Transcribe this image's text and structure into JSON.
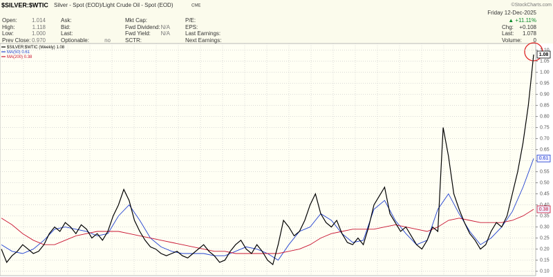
{
  "header": {
    "symbol": "$SILVER:$WTIC",
    "description": "Silver - Spot (EOD)/Light Crude Oil - Spot (EOD)",
    "exchange": "CME",
    "watermark": "©StockCharts.com"
  },
  "quote": {
    "columns": [
      [
        {
          "label": "Open:",
          "value": "1.014"
        },
        {
          "label": "High:",
          "value": "1.118"
        },
        {
          "label": "Low:",
          "value": "1.000"
        },
        {
          "label": "Prev Close:",
          "value": "0.970"
        }
      ],
      [
        {
          "label": "Ask:"
        },
        {
          "label": "Bid:"
        },
        {
          "label": "Last:"
        },
        {
          "label": "Optionable:",
          "value": "no"
        }
      ],
      [
        {
          "label": "Mkt Cap:"
        },
        {
          "label": "Fwd Dividend:",
          "value": "N/A"
        },
        {
          "label": "Fwd Yield:",
          "value": "N/A"
        },
        {
          "label": "SCTR:"
        }
      ],
      [
        {
          "label": "P/E:"
        },
        {
          "label": "EPS:"
        },
        {
          "label": "Last Earnings:"
        },
        {
          "label": "Next Earnings:"
        }
      ]
    ],
    "date": "Friday 12-Dec-2025",
    "change_pct": "▲ +11.11%",
    "right": [
      {
        "label": "Chg:",
        "value": "+0.108"
      },
      {
        "label": "Last:",
        "value": "1.078"
      },
      {
        "label": "Volume:",
        "value": "0"
      }
    ]
  },
  "chart_data": {
    "type": "line",
    "ylim": [
      0.08,
      1.13
    ],
    "yticks": [
      {
        "value": 0.1,
        "label": "0.10"
      },
      {
        "value": 0.15,
        "label": "0.15"
      },
      {
        "value": 0.2,
        "label": "0.20"
      },
      {
        "value": 0.25,
        "label": "0.25"
      },
      {
        "value": 0.3,
        "label": "0.30"
      },
      {
        "value": 0.35,
        "label": "0.35"
      },
      {
        "value": 0.4,
        "label": "0.40"
      },
      {
        "value": 0.45,
        "label": "0.45"
      },
      {
        "value": 0.5,
        "label": "0.50"
      },
      {
        "value": 0.55,
        "label": "0.55"
      },
      {
        "value": 0.6,
        "label": "0.60"
      },
      {
        "value": 0.65,
        "label": "0.65"
      },
      {
        "value": 0.7,
        "label": "0.70"
      },
      {
        "value": 0.75,
        "label": "0.75"
      },
      {
        "value": 0.8,
        "label": "0.80"
      },
      {
        "value": 0.85,
        "label": "0.85"
      },
      {
        "value": 0.9,
        "label": "0.90"
      },
      {
        "value": 0.95,
        "label": "0.95"
      },
      {
        "value": 1.0,
        "label": "1.00"
      },
      {
        "value": 1.05,
        "label": "1.05"
      },
      {
        "value": 1.1,
        "label": "1.10"
      }
    ],
    "grid": true,
    "series": [
      {
        "name": "$SILVER:$WTIC (Weekly)",
        "color": "#000000",
        "last": 1.08,
        "values": [
          0.2,
          0.14,
          0.17,
          0.19,
          0.22,
          0.2,
          0.18,
          0.19,
          0.22,
          0.27,
          0.3,
          0.28,
          0.32,
          0.3,
          0.27,
          0.31,
          0.29,
          0.25,
          0.27,
          0.24,
          0.28,
          0.35,
          0.4,
          0.47,
          0.42,
          0.33,
          0.28,
          0.24,
          0.21,
          0.2,
          0.18,
          0.17,
          0.18,
          0.19,
          0.17,
          0.16,
          0.18,
          0.2,
          0.22,
          0.19,
          0.17,
          0.14,
          0.15,
          0.19,
          0.22,
          0.24,
          0.2,
          0.18,
          0.22,
          0.19,
          0.15,
          0.13,
          0.22,
          0.33,
          0.3,
          0.26,
          0.28,
          0.33,
          0.4,
          0.45,
          0.36,
          0.32,
          0.3,
          0.33,
          0.27,
          0.23,
          0.22,
          0.25,
          0.22,
          0.3,
          0.4,
          0.44,
          0.48,
          0.36,
          0.32,
          0.28,
          0.3,
          0.26,
          0.22,
          0.2,
          0.24,
          0.3,
          0.28,
          0.75,
          0.62,
          0.45,
          0.38,
          0.32,
          0.27,
          0.24,
          0.2,
          0.22,
          0.28,
          0.32,
          0.3,
          0.35,
          0.45,
          0.55,
          0.68,
          0.85,
          1.08
        ]
      },
      {
        "name": "MA(50)",
        "color": "#1f3fd0",
        "last": 0.61,
        "values": [
          0.22,
          0.19,
          0.18,
          0.2,
          0.24,
          0.29,
          0.3,
          0.29,
          0.28,
          0.26,
          0.27,
          0.35,
          0.4,
          0.33,
          0.25,
          0.21,
          0.19,
          0.18,
          0.18,
          0.18,
          0.17,
          0.17,
          0.19,
          0.21,
          0.2,
          0.18,
          0.15,
          0.22,
          0.28,
          0.3,
          0.36,
          0.33,
          0.27,
          0.23,
          0.24,
          0.38,
          0.42,
          0.33,
          0.27,
          0.22,
          0.24,
          0.38,
          0.45,
          0.36,
          0.28,
          0.22,
          0.25,
          0.3,
          0.37,
          0.48,
          0.61
        ]
      },
      {
        "name": "MA(200)",
        "color": "#c8102e",
        "last": 0.38,
        "values": [
          0.34,
          0.31,
          0.27,
          0.24,
          0.22,
          0.22,
          0.24,
          0.26,
          0.27,
          0.28,
          0.28,
          0.28,
          0.27,
          0.26,
          0.25,
          0.24,
          0.23,
          0.22,
          0.21,
          0.2,
          0.19,
          0.19,
          0.18,
          0.18,
          0.18,
          0.18,
          0.18,
          0.19,
          0.2,
          0.22,
          0.25,
          0.27,
          0.28,
          0.29,
          0.29,
          0.29,
          0.3,
          0.31,
          0.3,
          0.29,
          0.28,
          0.3,
          0.33,
          0.34,
          0.33,
          0.32,
          0.32,
          0.32,
          0.33,
          0.35,
          0.38
        ]
      }
    ]
  }
}
